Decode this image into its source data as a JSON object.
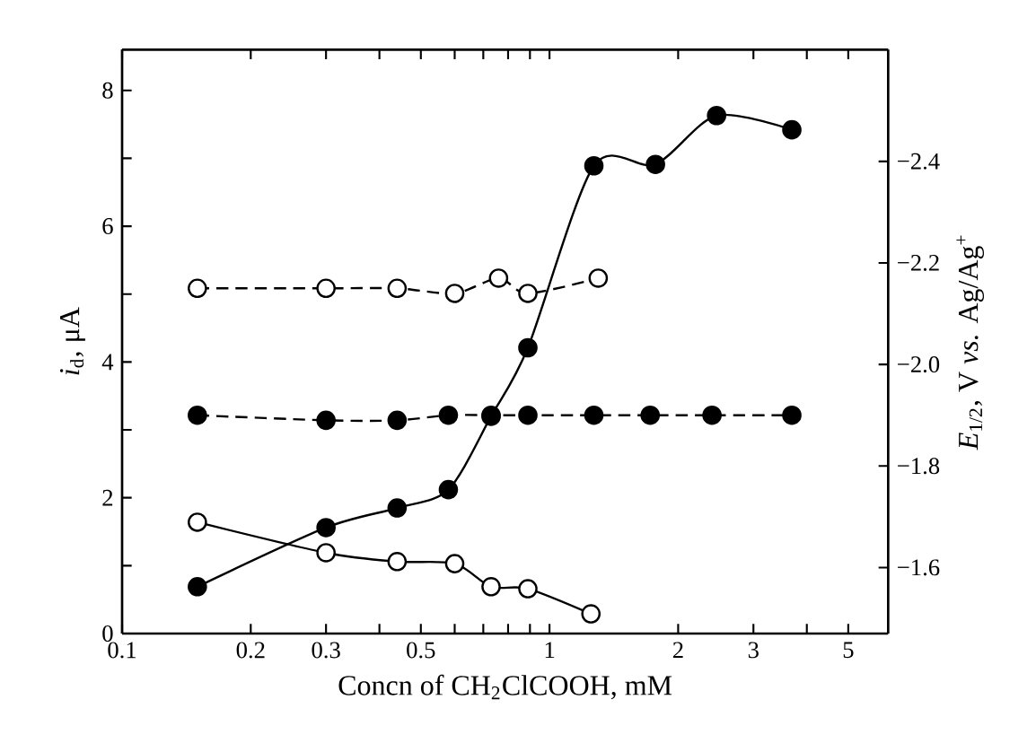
{
  "chart_data": {
    "type": "line",
    "xlabel": "Concn of CH$_{2}$ClCOOH, mM",
    "ylabel": "*i*$_{d}$, μA",
    "y2label": "*E*$_{1/2}$, V *vs.* Ag/Ag$^{+}$",
    "log": "x",
    "xlim": [
      0.1,
      6.2
    ],
    "ylim": [
      0,
      8.6
    ],
    "y2lim": [
      -1.47,
      -2.62
    ],
    "xticks": [
      0.1,
      0.2,
      0.3,
      {
        "value": 0.4,
        "label": null
      },
      0.5,
      {
        "value": 0.6,
        "label": null
      },
      {
        "value": 0.7,
        "label": null
      },
      {
        "value": 0.8,
        "label": null
      },
      {
        "value": 0.9,
        "label": null
      },
      1,
      2,
      3,
      {
        "value": 4,
        "label": null
      },
      5
    ],
    "yticks": [
      0,
      {
        "value": 1,
        "label": null
      },
      2,
      {
        "value": 3,
        "label": null
      },
      4,
      {
        "value": 5,
        "label": null
      },
      6,
      {
        "value": 7,
        "label": null
      },
      8
    ],
    "y2ticks": [
      {
        "value": -1.6,
        "label": "−1.6"
      },
      {
        "value": -1.8,
        "label": "−1.8"
      },
      {
        "value": -2.0,
        "label": "−2.0"
      },
      {
        "value": -2.2,
        "label": "−2.2"
      },
      {
        "value": -2.4,
        "label": "−2.4"
      }
    ],
    "series": [
      {
        "color": "#000000",
        "marker": "circle",
        "line_style": "solid",
        "x": [
          0.15,
          0.3,
          0.44,
          0.58,
          0.73,
          0.89,
          1.27,
          1.77,
          2.46,
          3.69
        ],
        "values": [
          0.69,
          1.56,
          1.85,
          2.12,
          3.2,
          4.21,
          6.89,
          6.91,
          7.63,
          7.42
        ]
      },
      {
        "color": "#ffffff",
        "marker": "circle",
        "line_style": "solid",
        "x": [
          0.15,
          0.3,
          0.44,
          0.6,
          0.73,
          0.89,
          1.25
        ],
        "values": [
          1.64,
          1.19,
          1.06,
          1.03,
          0.69,
          0.66,
          0.29
        ]
      },
      {
        "color": "#000000",
        "marker": "circle",
        "line_style": "dashed",
        "axis": "y2",
        "x": [
          0.15,
          0.3,
          0.44,
          0.58,
          0.73,
          0.89,
          1.27,
          1.72,
          2.4,
          3.69
        ],
        "values": [
          -1.9,
          -1.89,
          -1.89,
          -1.9,
          -1.9,
          -1.9,
          -1.9,
          -1.9,
          -1.9,
          -1.9
        ]
      },
      {
        "color": "#ffffff",
        "marker": "circle",
        "line_style": "dashed",
        "axis": "y2",
        "x": [
          0.15,
          0.3,
          0.44,
          0.6,
          0.76,
          0.89,
          1.3
        ],
        "values": [
          -2.15,
          -2.15,
          -2.15,
          -2.14,
          -2.17,
          -2.14,
          -2.17
        ]
      }
    ]
  }
}
